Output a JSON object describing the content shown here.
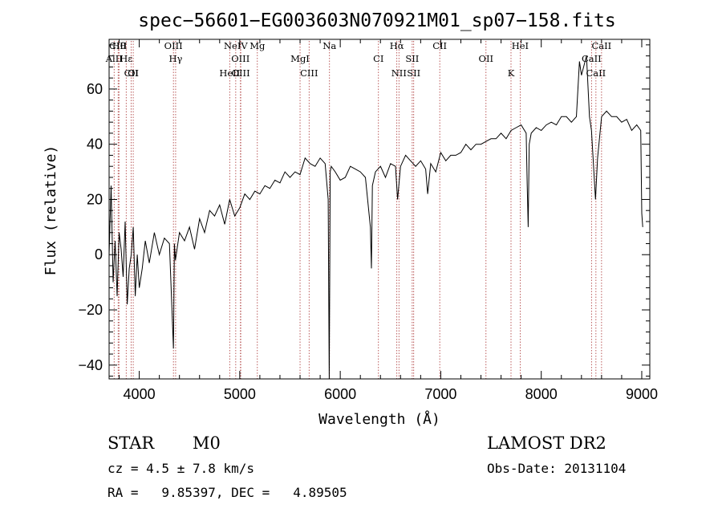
{
  "chart_data": {
    "type": "line",
    "title": "spec−56601−EG003603N070921M01_sp07−158.fits",
    "xlabel": "Wavelength (Å)",
    "ylabel": "Flux (relative)",
    "xlim": [
      3700,
      9080
    ],
    "ylim": [
      -45,
      78
    ],
    "xticks": [
      4000,
      5000,
      6000,
      7000,
      8000,
      9000
    ],
    "yticks": [
      -40,
      -20,
      0,
      20,
      40,
      60
    ],
    "grid": false,
    "x": [
      3700,
      3720,
      3740,
      3760,
      3780,
      3800,
      3820,
      3840,
      3860,
      3880,
      3900,
      3920,
      3940,
      3960,
      3980,
      4000,
      4030,
      4060,
      4100,
      4150,
      4200,
      4250,
      4300,
      4340,
      4350,
      4360,
      4400,
      4450,
      4500,
      4550,
      4600,
      4650,
      4700,
      4750,
      4800,
      4850,
      4900,
      4950,
      5000,
      5050,
      5100,
      5150,
      5200,
      5250,
      5300,
      5350,
      5400,
      5450,
      5500,
      5550,
      5600,
      5650,
      5700,
      5750,
      5800,
      5850,
      5880,
      5890,
      5895,
      5900,
      5910,
      5950,
      6000,
      6050,
      6100,
      6150,
      6200,
      6250,
      6300,
      6310,
      6320,
      6350,
      6400,
      6450,
      6500,
      6550,
      6570,
      6600,
      6650,
      6700,
      6750,
      6800,
      6850,
      6870,
      6900,
      6950,
      7000,
      7050,
      7100,
      7150,
      7200,
      7250,
      7300,
      7350,
      7400,
      7450,
      7500,
      7550,
      7600,
      7650,
      7700,
      7750,
      7800,
      7850,
      7860,
      7870,
      7880,
      7900,
      7950,
      8000,
      8050,
      8100,
      8150,
      8200,
      8250,
      8300,
      8350,
      8380,
      8400,
      8450,
      8480,
      8500,
      8540,
      8560,
      8600,
      8650,
      8700,
      8750,
      8800,
      8850,
      8900,
      8950,
      8990,
      9000,
      9010
    ],
    "series": [
      {
        "values": [
          0,
          25,
          -10,
          5,
          -15,
          8,
          2,
          -8,
          12,
          -18,
          -5,
          0,
          10,
          -15,
          0,
          -12,
          -5,
          5,
          -3,
          8,
          0,
          6,
          4,
          -34,
          4,
          -2,
          8,
          5,
          10,
          2,
          13,
          8,
          16,
          14,
          18,
          11,
          20,
          14,
          17,
          22,
          20,
          23,
          22,
          25,
          24,
          27,
          26,
          30,
          28,
          30,
          29,
          35,
          33,
          32,
          35,
          33,
          20,
          -45,
          -10,
          30,
          32,
          30,
          27,
          28,
          32,
          31,
          30,
          28,
          10,
          -5,
          25,
          30,
          32,
          28,
          33,
          32,
          20,
          32,
          36,
          34,
          32,
          34,
          31,
          22,
          33,
          30,
          37,
          34,
          36,
          36,
          37,
          40,
          38,
          40,
          40,
          41,
          42,
          42,
          44,
          42,
          45,
          46,
          47,
          44,
          25,
          10,
          40,
          44,
          46,
          45,
          47,
          48,
          47,
          50,
          50,
          48,
          50,
          70,
          65,
          72,
          50,
          45,
          20,
          35,
          50,
          52,
          50,
          50,
          48,
          49,
          45,
          47,
          45,
          15,
          10
        ]
      }
    ],
    "line_markers": [
      {
        "label": "Hθ",
        "x": 3798
      },
      {
        "label": "AlII",
        "x": 3750
      },
      {
        "label": "CII",
        "x": 3920
      },
      {
        "label": "CIII",
        "x": 3790
      },
      {
        "label": "Hε",
        "x": 3870
      },
      {
        "label": "OI",
        "x": 3940
      },
      {
        "label": "OIII",
        "x": 4340
      },
      {
        "label": "Hγ",
        "x": 4362
      },
      {
        "label": "HeII",
        "x": 4900
      },
      {
        "label": "NeIV",
        "x": 4960
      },
      {
        "label": "OIII",
        "x": 5007
      },
      {
        "label": "OIII",
        "x": 5010
      },
      {
        "label": "Mg",
        "x": 5175
      },
      {
        "label": "MgI",
        "x": 5600
      },
      {
        "label": "CIII",
        "x": 5690
      },
      {
        "label": "Na",
        "x": 5893
      },
      {
        "label": "CI",
        "x": 6380
      },
      {
        "label": "NII",
        "x": 6584
      },
      {
        "label": "Hα",
        "x": 6563
      },
      {
        "label": "SII",
        "x": 6716
      },
      {
        "label": "SII",
        "x": 6731
      },
      {
        "label": "CII",
        "x": 6990
      },
      {
        "label": "OII",
        "x": 7450
      },
      {
        "label": "K",
        "x": 7699
      },
      {
        "label": "HeI",
        "x": 7790
      },
      {
        "label": "CaII",
        "x": 8500
      },
      {
        "label": "CaII",
        "x": 8544
      },
      {
        "label": "CaII",
        "x": 8600
      }
    ]
  },
  "info": {
    "class": "STAR",
    "subclass": "M0",
    "survey": "LAMOST DR2",
    "cz": "cz = 4.5 ± 7.8 km/s",
    "obsdate": "Obs-Date: 20131104",
    "coords": "RA =   9.85397, DEC =   4.89505"
  }
}
